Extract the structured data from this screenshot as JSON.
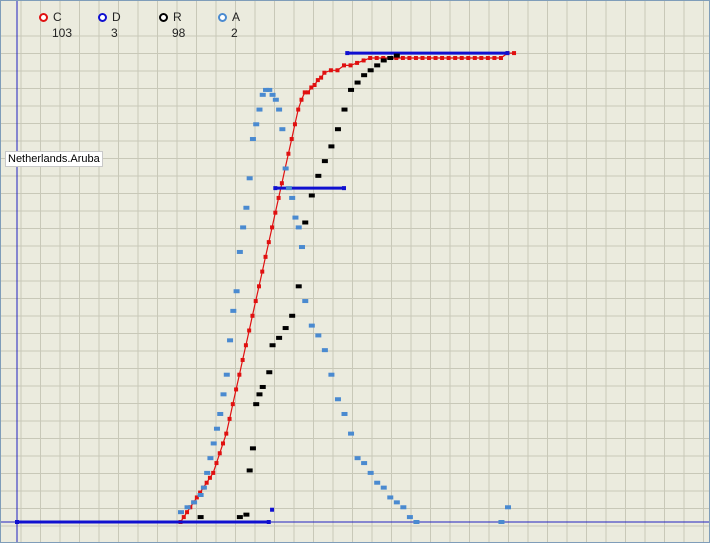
{
  "region_label": "Netherlands.Aruba",
  "legend": [
    {
      "key": "C",
      "count": "103",
      "color": "#e01010"
    },
    {
      "key": "D",
      "count": "3",
      "color": "#1010d0"
    },
    {
      "key": "R",
      "count": "98",
      "color": "#000000"
    },
    {
      "key": "A",
      "count": "2",
      "color": "#4a8ad0"
    }
  ],
  "chart_data": {
    "type": "scatter",
    "grid": true,
    "xlim": [
      0,
      100
    ],
    "ylim": [
      0,
      100
    ],
    "series": [
      {
        "name": "C",
        "color": "#e01010",
        "points": [
          [
            0,
            0
          ],
          [
            25,
            0
          ],
          [
            25.5,
            1
          ],
          [
            26,
            2
          ],
          [
            26.5,
            3
          ],
          [
            27,
            4
          ],
          [
            27.5,
            5
          ],
          [
            28,
            6
          ],
          [
            28.5,
            7
          ],
          [
            29,
            8
          ],
          [
            29.5,
            9
          ],
          [
            30,
            10
          ],
          [
            30.5,
            12
          ],
          [
            31,
            14
          ],
          [
            31.5,
            16
          ],
          [
            32,
            18
          ],
          [
            32.5,
            21
          ],
          [
            33,
            24
          ],
          [
            33.5,
            27
          ],
          [
            34,
            30
          ],
          [
            34.5,
            33
          ],
          [
            35,
            36
          ],
          [
            35.5,
            39
          ],
          [
            36,
            42
          ],
          [
            36.5,
            45
          ],
          [
            37,
            48
          ],
          [
            37.5,
            51
          ],
          [
            38,
            54
          ],
          [
            38.5,
            57
          ],
          [
            39,
            60
          ],
          [
            39.5,
            63
          ],
          [
            40,
            66
          ],
          [
            40.5,
            69
          ],
          [
            41,
            72
          ],
          [
            41.5,
            75
          ],
          [
            42,
            78
          ],
          [
            42.5,
            81
          ],
          [
            43,
            84
          ],
          [
            43.5,
            86
          ],
          [
            44,
            87.5
          ],
          [
            44.5,
            87.5
          ],
          [
            45,
            88.5
          ],
          [
            45.5,
            89
          ],
          [
            46,
            90
          ],
          [
            46.5,
            90.5
          ],
          [
            47,
            91.5
          ],
          [
            48,
            92
          ],
          [
            49,
            92
          ],
          [
            50,
            93
          ],
          [
            51,
            93
          ],
          [
            52,
            93.5
          ],
          [
            53,
            94
          ],
          [
            54,
            94.5
          ],
          [
            55,
            94.5
          ],
          [
            56,
            94.5
          ],
          [
            57,
            94.5
          ],
          [
            58,
            94.5
          ],
          [
            59,
            94.5
          ],
          [
            60,
            94.5
          ],
          [
            61,
            94.5
          ],
          [
            62,
            94.5
          ],
          [
            63,
            94.5
          ],
          [
            64,
            94.5
          ],
          [
            65,
            94.5
          ],
          [
            66,
            94.5
          ],
          [
            67,
            94.5
          ],
          [
            68,
            94.5
          ],
          [
            69,
            94.5
          ],
          [
            70,
            94.5
          ],
          [
            71,
            94.5
          ],
          [
            72,
            94.5
          ],
          [
            73,
            94.5
          ],
          [
            74,
            94.5
          ],
          [
            75,
            95.5
          ],
          [
            76,
            95.5
          ]
        ]
      },
      {
        "name": "D",
        "color": "#1010d0",
        "points": [
          [
            0,
            0
          ],
          [
            38.5,
            0
          ],
          [
            39,
            2.5
          ],
          [
            39.5,
            68
          ],
          [
            50,
            68
          ],
          [
            50.5,
            95.5
          ],
          [
            75,
            95.5
          ]
        ]
      },
      {
        "name": "R",
        "color": "#000000",
        "points": [
          [
            28,
            1
          ],
          [
            34,
            1
          ],
          [
            35,
            1.5
          ],
          [
            35.5,
            10.5
          ],
          [
            36,
            15
          ],
          [
            36.5,
            24
          ],
          [
            37,
            26
          ],
          [
            37.5,
            27.5
          ],
          [
            38.5,
            30.5
          ],
          [
            39,
            36
          ],
          [
            40,
            37.5
          ],
          [
            41,
            39.5
          ],
          [
            42,
            42
          ],
          [
            43,
            48
          ],
          [
            44,
            61
          ],
          [
            45,
            66.5
          ],
          [
            46,
            70.5
          ],
          [
            47,
            73.5
          ],
          [
            48,
            76.5
          ],
          [
            49,
            80
          ],
          [
            50,
            84
          ],
          [
            51,
            88
          ],
          [
            52,
            89.5
          ],
          [
            53,
            91
          ],
          [
            54,
            92
          ],
          [
            55,
            93
          ],
          [
            56,
            94
          ],
          [
            57,
            94.5
          ],
          [
            58,
            95
          ]
        ]
      },
      {
        "name": "A",
        "color": "#4a8ad0",
        "points": [
          [
            25,
            2
          ],
          [
            26,
            3
          ],
          [
            27,
            4
          ],
          [
            28,
            5.5
          ],
          [
            28.5,
            7
          ],
          [
            29,
            10
          ],
          [
            29.5,
            13
          ],
          [
            30,
            16
          ],
          [
            30.5,
            19
          ],
          [
            31,
            22
          ],
          [
            31.5,
            26
          ],
          [
            32,
            30
          ],
          [
            32.5,
            37
          ],
          [
            33,
            43
          ],
          [
            33.5,
            47
          ],
          [
            34,
            55
          ],
          [
            34.5,
            60
          ],
          [
            35,
            64
          ],
          [
            35.5,
            70
          ],
          [
            36,
            78
          ],
          [
            36.5,
            81
          ],
          [
            37,
            84
          ],
          [
            37.5,
            87
          ],
          [
            38,
            88
          ],
          [
            38.5,
            88
          ],
          [
            39,
            87
          ],
          [
            39.5,
            86
          ],
          [
            40,
            84
          ],
          [
            40.5,
            80
          ],
          [
            41,
            72
          ],
          [
            41.5,
            68
          ],
          [
            42,
            66
          ],
          [
            42.5,
            62
          ],
          [
            43,
            60
          ],
          [
            43.5,
            56
          ],
          [
            44,
            45
          ],
          [
            45,
            40
          ],
          [
            46,
            38
          ],
          [
            47,
            35
          ],
          [
            48,
            30
          ],
          [
            49,
            25
          ],
          [
            50,
            22
          ],
          [
            51,
            18
          ],
          [
            52,
            13
          ],
          [
            53,
            12
          ],
          [
            54,
            10
          ],
          [
            55,
            8
          ],
          [
            56,
            7
          ],
          [
            57,
            5
          ],
          [
            58,
            4
          ],
          [
            59,
            3
          ],
          [
            60,
            1
          ],
          [
            61,
            0
          ],
          [
            74,
            0
          ],
          [
            75,
            3
          ]
        ]
      }
    ]
  }
}
